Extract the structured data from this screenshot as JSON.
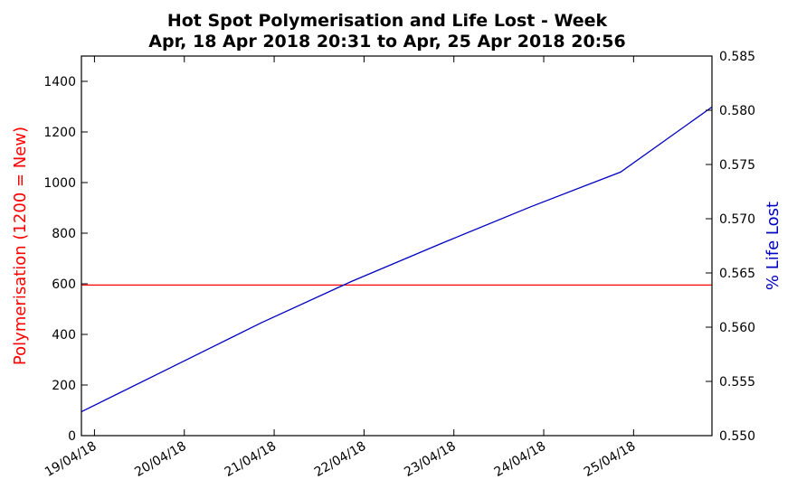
{
  "chart_data": {
    "type": "line",
    "title": "Hot Spot Polymerisation and Life Lost - Week",
    "subtitle": "Apr, 18 Apr 2018 20:31 to Apr, 25 Apr 2018 20:56",
    "x_start": "2018-04-18 20:31",
    "x_end": "2018-04-25 20:56",
    "x_ticks": [
      {
        "date": "2018-04-19 00:00",
        "label": "19/04/18"
      },
      {
        "date": "2018-04-20 00:00",
        "label": "20/04/18"
      },
      {
        "date": "2018-04-21 00:00",
        "label": "21/04/18"
      },
      {
        "date": "2018-04-22 00:00",
        "label": "22/04/18"
      },
      {
        "date": "2018-04-23 00:00",
        "label": "23/04/18"
      },
      {
        "date": "2018-04-24 00:00",
        "label": "24/04/18"
      },
      {
        "date": "2018-04-25 00:00",
        "label": "25/04/18"
      }
    ],
    "y_left": {
      "label": "Polymerisation (1200 = New)",
      "color": "#ff0000",
      "ylim": [
        0,
        1500
      ],
      "ticks": [
        0,
        200,
        400,
        600,
        800,
        1000,
        1200,
        1400
      ]
    },
    "y_right": {
      "label": "% Life Lost",
      "color": "#0000bf",
      "ylim": [
        0.55,
        0.585
      ],
      "ticks": [
        "0.550",
        "0.555",
        "0.560",
        "0.565",
        "0.570",
        "0.575",
        "0.580",
        "0.585"
      ]
    },
    "series": [
      {
        "axis": "left",
        "color": "#ff0000",
        "points": [
          {
            "date": "2018-04-18 20:31",
            "value": 595
          },
          {
            "date": "2018-04-25 20:56",
            "value": 595
          }
        ]
      },
      {
        "axis": "right",
        "color": "#0000bf",
        "points": [
          {
            "date": "2018-04-18 20:31",
            "value": 0.5522
          },
          {
            "date": "2018-04-19 20:31",
            "value": 0.5563
          },
          {
            "date": "2018-04-20 20:31",
            "value": 0.5604
          },
          {
            "date": "2018-04-21 20:31",
            "value": 0.5642
          },
          {
            "date": "2018-04-22 20:31",
            "value": 0.5677
          },
          {
            "date": "2018-04-23 20:31",
            "value": 0.5711
          },
          {
            "date": "2018-04-24 20:31",
            "value": 0.5743
          },
          {
            "date": "2018-04-25 20:56",
            "value": 0.5803
          }
        ]
      }
    ],
    "grid": false
  }
}
